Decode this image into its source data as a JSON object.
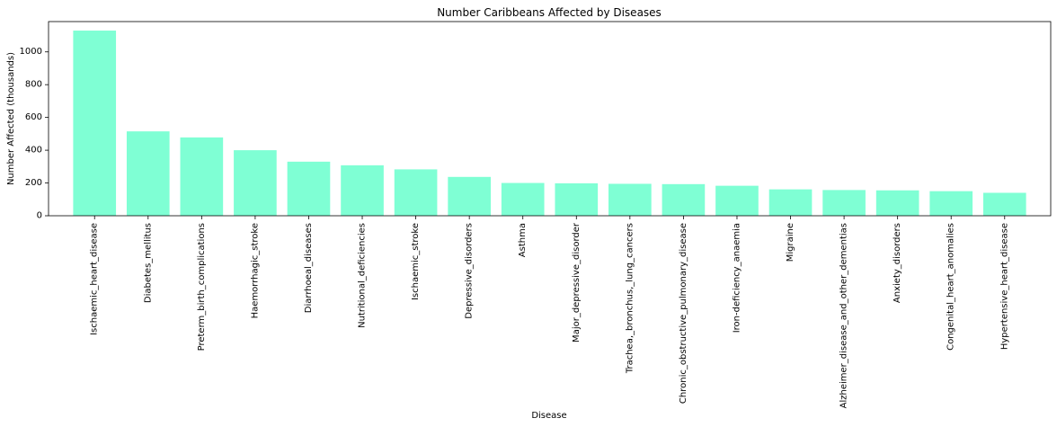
{
  "chart_data": {
    "type": "bar",
    "title": "Number Caribbeans Affected by Diseases",
    "xlabel": "Disease",
    "ylabel": "Number Affected (thousands)",
    "categories": [
      "Ischaemic_heart_disease",
      "Diabetes_mellitus",
      "Preterm_birth_complications",
      "Haemorrhagic_stroke",
      "Diarrhoeal_diseases",
      "Nutritional_deficiencies",
      "Ischaemic_stroke",
      "Depressive_disorders",
      "Asthma",
      "Major_depressive_disorder",
      "Trachea,_bronchus,_lung_cancers",
      "Chronic_obstructive_pulmonary_disease",
      "Iron-deficiency_anaemia",
      "Migraine",
      "Alzheimer_disease_and_other_dementias",
      "Anxiety_disorders",
      "Congenital_heart_anomalies",
      "Hypertensive_heart_disease"
    ],
    "values": [
      1130,
      515,
      478,
      400,
      330,
      308,
      283,
      237,
      200,
      198,
      195,
      193,
      183,
      161,
      157,
      155,
      150,
      140
    ],
    "ylim": [
      0,
      1185
    ],
    "yticks": [
      "0",
      "200",
      "400",
      "600",
      "800",
      "1000"
    ],
    "grid": false,
    "bar_color": "#7fffd4"
  }
}
